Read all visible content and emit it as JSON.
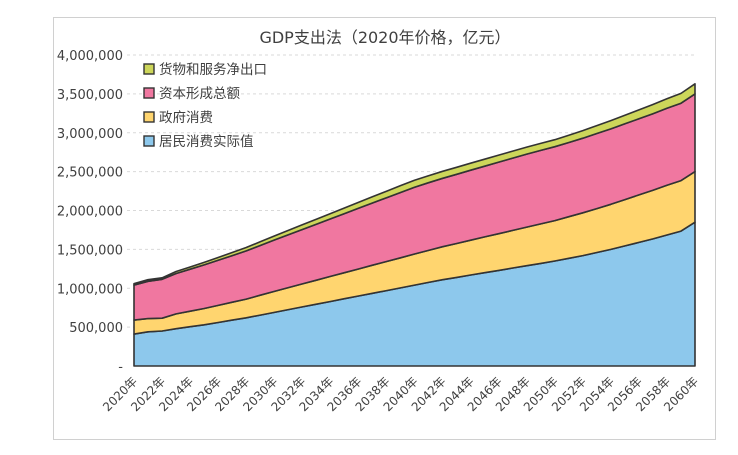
{
  "chart_data": {
    "type": "area",
    "stacked": true,
    "title": "GDP支出法（2020年价格，亿元）",
    "xlabel": "",
    "ylabel": "",
    "ylim": [
      0,
      4000000
    ],
    "yticks": [
      0,
      500000,
      1000000,
      1500000,
      2000000,
      2500000,
      3000000,
      3500000,
      4000000
    ],
    "ytick_labels": [
      "-",
      "500,000",
      "1,000,000",
      "1,500,000",
      "2,000,000",
      "2,500,000",
      "3,000,000",
      "3,500,000",
      "4,000,000"
    ],
    "x": [
      2020,
      2021,
      2022,
      2023,
      2024,
      2025,
      2026,
      2027,
      2028,
      2029,
      2030,
      2031,
      2032,
      2033,
      2034,
      2035,
      2036,
      2037,
      2038,
      2039,
      2040,
      2041,
      2042,
      2043,
      2044,
      2045,
      2046,
      2047,
      2048,
      2049,
      2050,
      2051,
      2052,
      2053,
      2054,
      2055,
      2056,
      2057,
      2058,
      2059,
      2060
    ],
    "xtick_labels": [
      "2020年",
      "2022年",
      "2024年",
      "2026年",
      "2028年",
      "2030年",
      "2032年",
      "2034年",
      "2036年",
      "2038年",
      "2040年",
      "2042年",
      "2044年",
      "2046年",
      "2048年",
      "2050年",
      "2052年",
      "2054年",
      "2056年",
      "2058年",
      "2060年"
    ],
    "grid": true,
    "legend_position": "top-left",
    "series": [
      {
        "name": "居民消费实际值",
        "color": "#8DC8EC",
        "values": [
          410000,
          440000,
          450000,
          480000,
          505000,
          530000,
          560000,
          590000,
          620000,
          655000,
          690000,
          725000,
          760000,
          795000,
          830000,
          865000,
          900000,
          935000,
          970000,
          1005000,
          1040000,
          1075000,
          1110000,
          1140000,
          1170000,
          1200000,
          1230000,
          1260000,
          1290000,
          1320000,
          1350000,
          1385000,
          1420000,
          1460000,
          1500000,
          1545000,
          1590000,
          1635000,
          1685000,
          1735000,
          1850000
        ]
      },
      {
        "name": "政府消费",
        "color": "#FFD56F",
        "values": [
          180000,
          170000,
          165000,
          190000,
          200000,
          210000,
          220000,
          230000,
          240000,
          255000,
          270000,
          283000,
          296000,
          309000,
          322000,
          335000,
          348000,
          361000,
          374000,
          387000,
          400000,
          412000,
          424000,
          436000,
          448000,
          460000,
          472000,
          484000,
          496000,
          508000,
          520000,
          535000,
          550000,
          565000,
          580000,
          595000,
          610000,
          625000,
          640000,
          650000,
          650000
        ]
      },
      {
        "name": "资本形成总额",
        "color": "#F077A0",
        "values": [
          450000,
          480000,
          500000,
          520000,
          540000,
          560000,
          580000,
          600000,
          620000,
          640000,
          660000,
          680000,
          700000,
          720000,
          740000,
          760000,
          780000,
          800000,
          820000,
          840000,
          860000,
          870000,
          880000,
          890000,
          900000,
          910000,
          920000,
          930000,
          940000,
          945000,
          950000,
          955000,
          960000,
          965000,
          970000,
          975000,
          980000,
          985000,
          990000,
          995000,
          1000000
        ]
      },
      {
        "name": "货物和服务净出口",
        "color": "#CDD65A",
        "values": [
          20000,
          20000,
          20000,
          25000,
          28000,
          32000,
          35000,
          40000,
          44000,
          48000,
          52000,
          56000,
          60000,
          64000,
          68000,
          72000,
          76000,
          80000,
          84000,
          88000,
          90000,
          90000,
          90000,
          90000,
          90000,
          90000,
          90000,
          90000,
          90000,
          90000,
          90000,
          94000,
          98000,
          102000,
          106000,
          110000,
          114000,
          118000,
          122000,
          126000,
          130000
        ]
      }
    ],
    "legend_order": [
      "货物和服务净出口",
      "资本形成总额",
      "政府消费",
      "居民消费实际值"
    ]
  }
}
